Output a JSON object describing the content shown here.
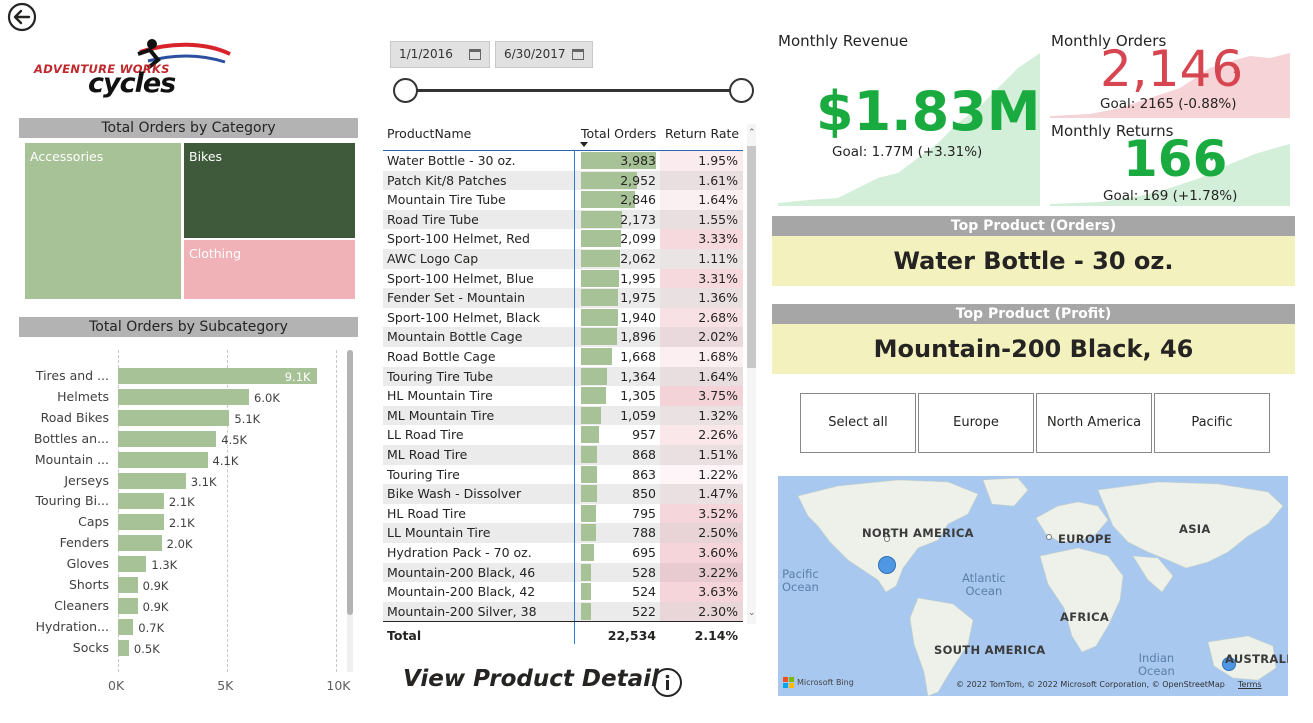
{
  "app": {
    "logo": {
      "line1": "ADVENTURE WORKS",
      "line2": "cycles"
    }
  },
  "category_chart": {
    "title": "Total Orders by Category",
    "items": [
      {
        "label": "Accessories",
        "color": "#a7c296"
      },
      {
        "label": "Bikes",
        "color": "#3e5a3a"
      },
      {
        "label": "Clothing",
        "color": "#f0b2b7"
      }
    ]
  },
  "subcategory_chart": {
    "title": "Total Orders by Subcategory",
    "axis_ticks": [
      "0K",
      "5K",
      "10K"
    ]
  },
  "chart_data": [
    {
      "type": "treemap",
      "title": "Total Orders by Category",
      "categories": [
        "Accessories",
        "Bikes",
        "Clothing"
      ]
    },
    {
      "type": "bar",
      "title": "Total Orders by Subcategory",
      "categories": [
        "Tires and ...",
        "Helmets",
        "Road Bikes",
        "Bottles an...",
        "Mountain ...",
        "Jerseys",
        "Touring Bi...",
        "Caps",
        "Fenders",
        "Gloves",
        "Shorts",
        "Cleaners",
        "Hydration...",
        "Socks"
      ],
      "values": [
        9.1,
        6.0,
        5.1,
        4.5,
        4.1,
        3.1,
        2.1,
        2.1,
        2.0,
        1.3,
        0.9,
        0.9,
        0.7,
        0.5
      ],
      "value_labels": [
        "9.1K",
        "6.0K",
        "5.1K",
        "4.5K",
        "4.1K",
        "3.1K",
        "2.1K",
        "2.1K",
        "2.0K",
        "1.3K",
        "0.9K",
        "0.9K",
        "0.7K",
        "0.5K"
      ],
      "xlim": [
        0,
        10
      ],
      "xticks": [
        "0K",
        "5K",
        "10K"
      ]
    }
  ],
  "date_slicer": {
    "start": "1/1/2016",
    "end": "6/30/2017"
  },
  "product_table": {
    "headers": [
      "ProductName",
      "Total Orders",
      "Return Rate"
    ],
    "rows": [
      {
        "name": "Water Bottle - 30 oz.",
        "orders": "3,983",
        "orders_n": 3983,
        "rate": "1.95%",
        "rate_n": 1.95
      },
      {
        "name": "Patch Kit/8 Patches",
        "orders": "2,952",
        "orders_n": 2952,
        "rate": "1.61%",
        "rate_n": 1.61
      },
      {
        "name": "Mountain Tire Tube",
        "orders": "2,846",
        "orders_n": 2846,
        "rate": "1.64%",
        "rate_n": 1.64
      },
      {
        "name": "Road Tire Tube",
        "orders": "2,173",
        "orders_n": 2173,
        "rate": "1.55%",
        "rate_n": 1.55
      },
      {
        "name": "Sport-100 Helmet, Red",
        "orders": "2,099",
        "orders_n": 2099,
        "rate": "3.33%",
        "rate_n": 3.33
      },
      {
        "name": "AWC Logo Cap",
        "orders": "2,062",
        "orders_n": 2062,
        "rate": "1.11%",
        "rate_n": 1.11
      },
      {
        "name": "Sport-100 Helmet, Blue",
        "orders": "1,995",
        "orders_n": 1995,
        "rate": "3.31%",
        "rate_n": 3.31
      },
      {
        "name": "Fender Set - Mountain",
        "orders": "1,975",
        "orders_n": 1975,
        "rate": "1.36%",
        "rate_n": 1.36
      },
      {
        "name": "Sport-100 Helmet, Black",
        "orders": "1,940",
        "orders_n": 1940,
        "rate": "2.68%",
        "rate_n": 2.68
      },
      {
        "name": "Mountain Bottle Cage",
        "orders": "1,896",
        "orders_n": 1896,
        "rate": "2.02%",
        "rate_n": 2.02
      },
      {
        "name": "Road Bottle Cage",
        "orders": "1,668",
        "orders_n": 1668,
        "rate": "1.68%",
        "rate_n": 1.68
      },
      {
        "name": "Touring Tire Tube",
        "orders": "1,364",
        "orders_n": 1364,
        "rate": "1.64%",
        "rate_n": 1.64
      },
      {
        "name": "HL Mountain Tire",
        "orders": "1,305",
        "orders_n": 1305,
        "rate": "3.75%",
        "rate_n": 3.75
      },
      {
        "name": "ML Mountain Tire",
        "orders": "1,059",
        "orders_n": 1059,
        "rate": "1.32%",
        "rate_n": 1.32
      },
      {
        "name": "LL Road Tire",
        "orders": "957",
        "orders_n": 957,
        "rate": "2.26%",
        "rate_n": 2.26
      },
      {
        "name": "ML Road Tire",
        "orders": "868",
        "orders_n": 868,
        "rate": "1.51%",
        "rate_n": 1.51
      },
      {
        "name": "Touring Tire",
        "orders": "863",
        "orders_n": 863,
        "rate": "1.22%",
        "rate_n": 1.22
      },
      {
        "name": "Bike Wash - Dissolver",
        "orders": "850",
        "orders_n": 850,
        "rate": "1.47%",
        "rate_n": 1.47
      },
      {
        "name": "HL Road Tire",
        "orders": "795",
        "orders_n": 795,
        "rate": "3.52%",
        "rate_n": 3.52
      },
      {
        "name": "LL Mountain Tire",
        "orders": "788",
        "orders_n": 788,
        "rate": "2.50%",
        "rate_n": 2.5
      },
      {
        "name": "Hydration Pack - 70 oz.",
        "orders": "695",
        "orders_n": 695,
        "rate": "3.60%",
        "rate_n": 3.6
      },
      {
        "name": "Mountain-200 Black, 46",
        "orders": "528",
        "orders_n": 528,
        "rate": "3.22%",
        "rate_n": 3.22
      },
      {
        "name": "Mountain-200 Black, 42",
        "orders": "524",
        "orders_n": 524,
        "rate": "3.63%",
        "rate_n": 3.63
      },
      {
        "name": "Mountain-200 Silver, 38",
        "orders": "522",
        "orders_n": 522,
        "rate": "2.30%",
        "rate_n": 2.3
      }
    ],
    "total": {
      "label": "Total",
      "orders": "22,534",
      "rate": "2.14%"
    }
  },
  "view_detail": {
    "label": "View Product Detail"
  },
  "kpis": {
    "revenue": {
      "title": "Monthly Revenue",
      "value": "$1.83M",
      "goal": "Goal: 1.77M (+3.31%)",
      "color": "#1aab40"
    },
    "orders": {
      "title": "Monthly Orders",
      "value": "2,146",
      "goal": "Goal: 2165 (-0.88%)",
      "color": "#d64550"
    },
    "returns": {
      "title": "Monthly Returns",
      "value": "166",
      "goal": "Goal: 169 (+1.78%)",
      "color": "#1aab40"
    }
  },
  "top_product_orders": {
    "title": "Top Product (Orders)",
    "value": "Water Bottle - 30 oz."
  },
  "top_product_profit": {
    "title": "Top Product (Profit)",
    "value": "Mountain-200 Black, 46"
  },
  "regions": [
    "Select all",
    "Europe",
    "North America",
    "Pacific"
  ],
  "map": {
    "labels": {
      "north_america": "NORTH AMERICA",
      "europe": "EUROPE",
      "asia": "ASIA",
      "africa": "AFRICA",
      "south_america": "SOUTH AMERICA",
      "australia": "AUSTRALIA"
    },
    "oceans": {
      "pacific": "Pacific\nOcean",
      "atlantic": "Atlantic\nOcean",
      "indian": "Indian\nOcean"
    },
    "brand": "Microsoft Bing",
    "copyright": "© 2022 TomTom, © 2022 Microsoft Corporation, © OpenStreetMap",
    "terms": "Terms"
  },
  "icons": [
    "back-arrow-icon",
    "calendar-icon",
    "info-icon",
    "checkmark-icon",
    "exclamation-icon"
  ]
}
